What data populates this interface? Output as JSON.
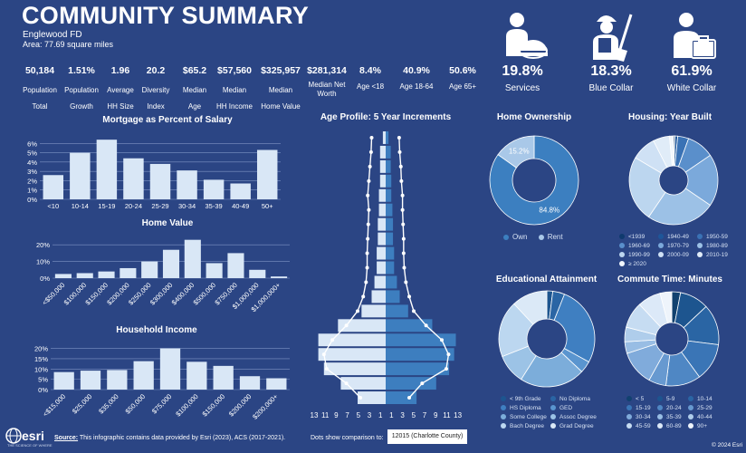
{
  "header": {
    "title": "COMMUNITY SUMMARY",
    "subtitle": "Englewood FD",
    "area": "Area: 77.69 square miles"
  },
  "stats": [
    {
      "value": "50,184",
      "label1": "Population",
      "label2": "Total"
    },
    {
      "value": "1.51%",
      "label1": "Population",
      "label2": "Growth"
    },
    {
      "value": "1.96",
      "label1": "Average",
      "label2": "HH Size"
    },
    {
      "value": "20.2",
      "label1": "Diversity",
      "label2": "Index"
    },
    {
      "value": "$65.2",
      "label1": "Median",
      "label2": "Age"
    },
    {
      "value": "$57,560",
      "label1": "Median",
      "label2": "HH Income"
    },
    {
      "value": "$325,957",
      "label1": "Median",
      "label2": "Home Value"
    },
    {
      "value": "$281,314",
      "label1": "Median Net Worth",
      "label2": ""
    },
    {
      "value": "8.4%",
      "label1": "Age <18",
      "label2": ""
    },
    {
      "value": "40.9%",
      "label1": "Age 18-64",
      "label2": ""
    },
    {
      "value": "50.6%",
      "label1": "Age 65+",
      "label2": ""
    }
  ],
  "occupation": [
    {
      "value": "19.8%",
      "label": "Services",
      "icon": "services-worker-icon"
    },
    {
      "value": "18.3%",
      "label": "Blue Collar",
      "icon": "blue-collar-worker-icon"
    },
    {
      "value": "61.9%",
      "label": "White Collar",
      "icon": "white-collar-worker-icon"
    }
  ],
  "footer": {
    "source_label": "Source:",
    "source_text": " This infographic contains data provided by Esri (2023), ACS (2017-2021).",
    "compare_label": "Dots show comparison to:",
    "compare_value": "12015 (Charlotte County)",
    "copyright": "© 2024 Esri",
    "logo": "esri",
    "logo_tag": "THE SCIENCE OF WHERE"
  },
  "colors": {
    "background": "#2b4584",
    "light_bar": "#d9e7f6",
    "dark_bar": "#3d7ebf"
  },
  "chart_data": [
    {
      "id": "mortgage",
      "type": "bar",
      "title": "Mortgage as Percent of Salary",
      "categories": [
        "<10",
        "10-14",
        "15-19",
        "20-24",
        "25-29",
        "30-34",
        "35-39",
        "40-49",
        "50+"
      ],
      "values": [
        2.6,
        5.0,
        6.4,
        4.4,
        3.8,
        3.1,
        2.1,
        1.7,
        5.3
      ],
      "ylim": [
        0,
        7
      ],
      "yticks": [
        "0%",
        "1%",
        "2%",
        "3%",
        "4%",
        "5%",
        "6%"
      ]
    },
    {
      "id": "home_value",
      "type": "bar",
      "title": "Home Value",
      "categories": [
        "<$50,000",
        "$100,000",
        "$150,000",
        "$200,000",
        "$250,000",
        "$300,000",
        "$400,000",
        "$500,000",
        "$750,000",
        "$1,000,000",
        "$1,000,000+"
      ],
      "values": [
        2.5,
        3,
        4,
        6,
        10,
        17,
        23,
        9,
        15,
        5,
        1
      ],
      "ylim": [
        0,
        25
      ],
      "yticks": [
        "0%",
        "10%",
        "20%"
      ]
    },
    {
      "id": "household_income",
      "type": "bar",
      "title": "Household Income",
      "categories": [
        "<$15,000",
        "$25,000",
        "$35,000",
        "$50,000",
        "$75,000",
        "$100,000",
        "$150,000",
        "$200,000",
        "$200,000+"
      ],
      "values": [
        8.5,
        9.2,
        9.5,
        13.8,
        20,
        13.5,
        11.5,
        6.5,
        5.5
      ],
      "ylim": [
        0,
        22
      ],
      "yticks": [
        "0%",
        "5%",
        "10%",
        "15%",
        "20%"
      ]
    },
    {
      "id": "age_profile",
      "type": "bar",
      "title": "Age Profile: 5 Year Increments",
      "xticks": [
        "13",
        "11",
        "9",
        "7",
        "5",
        "3",
        "1",
        "1",
        "3",
        "5",
        "7",
        "9",
        "11",
        "13"
      ],
      "male": [
        0.5,
        1.0,
        1.0,
        1.0,
        1.2,
        1.2,
        1.4,
        1.4,
        1.6,
        1.6,
        2.0,
        2.5,
        4.3,
        8.5,
        12.0,
        12.0,
        11.0,
        8.0,
        5.0
      ],
      "female": [
        0.5,
        0.9,
        0.9,
        1.0,
        1.0,
        1.2,
        1.3,
        1.3,
        1.5,
        1.5,
        2.0,
        2.5,
        4.0,
        8.3,
        12.5,
        12.2,
        11.3,
        9.0,
        5.5
      ],
      "compare_male": [
        2.5,
        2.6,
        2.8,
        3.0,
        3.2,
        3.0,
        3.1,
        3.2,
        3.3,
        3.3,
        3.5,
        4.0,
        5.0,
        7.0,
        9.5,
        11.0,
        10.5,
        7.0,
        4.5
      ],
      "compare_female": [
        2.4,
        2.5,
        2.7,
        2.8,
        3.0,
        3.0,
        3.1,
        3.2,
        3.2,
        3.3,
        3.6,
        4.2,
        5.0,
        7.2,
        10.0,
        11.2,
        10.8,
        6.5,
        4.2
      ]
    },
    {
      "id": "home_ownership",
      "type": "pie",
      "title": "Home Ownership",
      "labels": [
        "Own",
        "Rent"
      ],
      "values": [
        84.8,
        15.2
      ],
      "data_labels": [
        "84.8%",
        "15.2%"
      ],
      "colors": [
        "#3c7fc0",
        "#a9c8e8"
      ]
    },
    {
      "id": "housing_year_built",
      "type": "pie",
      "title": "Housing: Year Built",
      "labels": [
        "<1939",
        "1940-49",
        "1950-59",
        "1960-69",
        "1970-79",
        "1980-89",
        "1990-99",
        "2000-09",
        "2010-19",
        "≥ 2020"
      ],
      "values": [
        0.5,
        1,
        4,
        10,
        19,
        25,
        24,
        9,
        6,
        1.5
      ],
      "colors": [
        "#0f3a6e",
        "#1e5699",
        "#3a72b5",
        "#5a8fcb",
        "#7ba9db",
        "#9cc1e6",
        "#bcd6ef",
        "#cfe1f5",
        "#e0ecf8",
        "#f1f6fc"
      ]
    },
    {
      "id": "educational_attainment",
      "type": "pie",
      "title": "Educational Attainment",
      "labels": [
        "< 9th Grade",
        "No Diploma",
        "HS Diploma",
        "GED",
        "Some College",
        "Assoc Degree",
        "Bach Degree",
        "Grad Degree"
      ],
      "values": [
        2,
        4,
        27,
        4,
        22,
        10,
        19,
        12
      ],
      "colors": [
        "#1d558f",
        "#2a65a4",
        "#3f7fc1",
        "#5a95cf",
        "#7cadda",
        "#9cc3e6",
        "#bcd7f0",
        "#dbe9f7"
      ]
    },
    {
      "id": "commute_time",
      "type": "pie",
      "title": "Commute Time: Minutes",
      "labels": [
        "< 5",
        "5-9",
        "10-14",
        "15-19",
        "20-24",
        "25-29",
        "30-34",
        "35-39",
        "40-44",
        "45-59",
        "60-89",
        "90+"
      ],
      "values": [
        3,
        10,
        14,
        13,
        12,
        6,
        12,
        4,
        5,
        9,
        8,
        4
      ],
      "colors": [
        "#11416f",
        "#1d558f",
        "#2a65a4",
        "#3a75b6",
        "#4f87c4",
        "#6799d0",
        "#80abdb",
        "#98bde4",
        "#afcdeb",
        "#c6dcf2",
        "#dce9f8",
        "#eef4fb"
      ]
    }
  ]
}
